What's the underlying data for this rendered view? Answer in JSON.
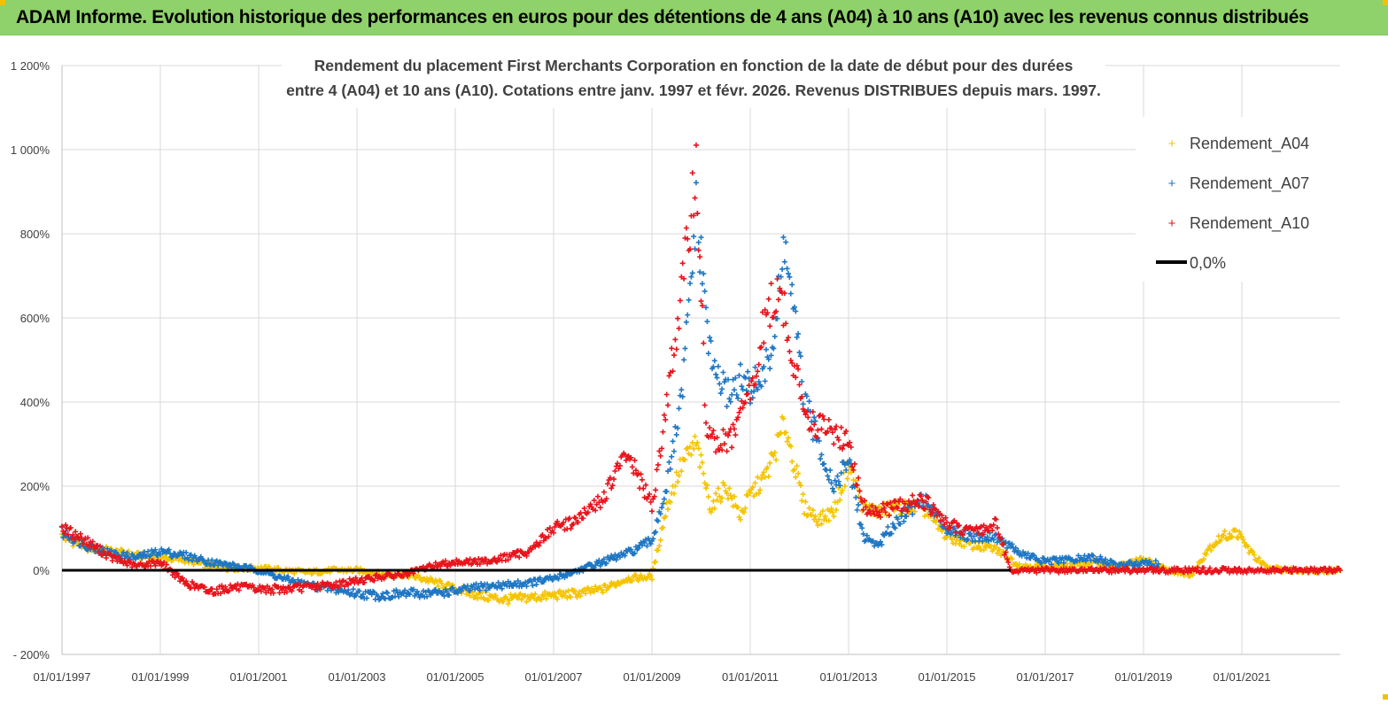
{
  "banner": {
    "title": "ADAM Informe. Evolution historique des performances en euros pour des détentions de 4 ans (A04) à 10 ans (A10) avec les revenus connus distribués"
  },
  "colors": {
    "banner": "#8fd16a",
    "a04": "#f5c400",
    "a07": "#1f77c4",
    "a10": "#e8141c",
    "zero": "#000000",
    "grid": "#d9d9d9"
  },
  "chart_data": {
    "type": "scatter",
    "title_line1": "Rendement du placement First Merchants Corporation en fonction de la date de début pour des durées",
    "title_line2": "entre 4 (A04) et 10 ans (A10).  Cotations entre janv. 1997 et févr. 2026. Revenus DISTRIBUES depuis mars. 1997.",
    "xlabel": "",
    "ylabel": "",
    "x_range": [
      1997.0,
      2023.0
    ],
    "ylim": [
      -200,
      1200
    ],
    "y_ticks": [
      -200,
      0,
      200,
      400,
      600,
      800,
      1000,
      1200
    ],
    "y_tick_labels": [
      "- 200%",
      "0%",
      "200%",
      "400%",
      "600%",
      "800%",
      "1 000%",
      "1 200%"
    ],
    "x_ticks": [
      1997,
      1999,
      2001,
      2003,
      2005,
      2007,
      2009,
      2011,
      2013,
      2015,
      2017,
      2019,
      2021
    ],
    "x_tick_labels": [
      "01/01/1997",
      "01/01/1999",
      "01/01/2001",
      "01/01/2003",
      "01/01/2005",
      "01/01/2007",
      "01/01/2009",
      "01/01/2011",
      "01/01/2013",
      "01/01/2015",
      "01/01/2017",
      "01/01/2019",
      "01/01/2021"
    ],
    "legend_position": "top-right",
    "series": [
      {
        "name": "Rendement_A04",
        "color_key": "a04",
        "x": [
          1997.0,
          1997.5,
          1998.0,
          1998.5,
          1999.0,
          1999.5,
          2000.0,
          2000.5,
          2001.0,
          2001.5,
          2002.0,
          2002.5,
          2003.0,
          2003.5,
          2004.0,
          2004.5,
          2005.0,
          2005.5,
          2006.0,
          2006.5,
          2007.0,
          2007.5,
          2008.0,
          2008.5,
          2009.0,
          2009.3,
          2009.6,
          2009.9,
          2010.2,
          2010.5,
          2010.8,
          2011.0,
          2011.3,
          2011.5,
          2011.7,
          2011.9,
          2012.1,
          2012.4,
          2012.7,
          2013.0,
          2013.3,
          2013.6,
          2014.0,
          2014.5,
          2015.0,
          2015.5,
          2016.0,
          2016.5,
          2017.0,
          2017.5,
          2018.0,
          2018.5,
          2019.0,
          2019.5,
          2020.0,
          2020.3,
          2020.6,
          2020.9,
          2021.2,
          2021.5,
          2022.0,
          2022.5,
          2023.0
        ],
        "values": [
          80,
          55,
          45,
          35,
          30,
          25,
          10,
          5,
          5,
          0,
          -5,
          0,
          0,
          -10,
          -10,
          -25,
          -45,
          -60,
          -70,
          -65,
          -60,
          -55,
          -45,
          -20,
          -15,
          150,
          250,
          300,
          150,
          200,
          130,
          180,
          220,
          280,
          350,
          250,
          150,
          120,
          140,
          250,
          150,
          140,
          150,
          150,
          80,
          60,
          50,
          10,
          10,
          10,
          20,
          10,
          25,
          0,
          -10,
          50,
          80,
          90,
          40,
          5,
          0,
          0,
          0
        ]
      },
      {
        "name": "Rendement_A07",
        "color_key": "a07",
        "x": [
          1997.0,
          1997.5,
          1998.0,
          1998.5,
          1999.0,
          1999.5,
          2000.0,
          2000.5,
          2001.0,
          2001.5,
          2002.0,
          2002.5,
          2003.0,
          2003.5,
          2004.0,
          2004.5,
          2005.0,
          2005.5,
          2006.0,
          2006.5,
          2007.0,
          2007.5,
          2008.0,
          2008.5,
          2009.0,
          2009.3,
          2009.6,
          2009.9,
          2010.2,
          2010.5,
          2010.8,
          2011.0,
          2011.3,
          2011.5,
          2011.7,
          2011.9,
          2012.1,
          2012.4,
          2012.7,
          2013.0,
          2013.3,
          2013.6,
          2014.0,
          2014.5,
          2015.0,
          2015.5,
          2016.0,
          2016.5,
          2017.0,
          2017.5,
          2018.0,
          2018.5,
          2019.0,
          2019.3
        ],
        "values": [
          90,
          60,
          40,
          30,
          45,
          35,
          20,
          10,
          0,
          -20,
          -35,
          -45,
          -55,
          -60,
          -55,
          -55,
          -50,
          -40,
          -35,
          -30,
          -20,
          0,
          20,
          40,
          70,
          200,
          400,
          850,
          500,
          420,
          450,
          430,
          470,
          560,
          780,
          600,
          400,
          300,
          200,
          260,
          80,
          60,
          120,
          170,
          100,
          80,
          80,
          40,
          20,
          25,
          30,
          10,
          20,
          15
        ]
      },
      {
        "name": "Rendement_A10",
        "color_key": "a10",
        "x": [
          1997.0,
          1997.5,
          1998.0,
          1998.5,
          1999.0,
          1999.5,
          2000.0,
          2000.5,
          2001.0,
          2001.5,
          2002.0,
          2002.5,
          2003.0,
          2003.5,
          2004.0,
          2004.5,
          2005.0,
          2005.5,
          2006.0,
          2006.5,
          2007.0,
          2007.5,
          2008.0,
          2008.5,
          2009.0,
          2009.3,
          2009.6,
          2009.9,
          2010.1,
          2010.3,
          2010.6,
          2010.9,
          2011.1,
          2011.3,
          2011.5,
          2011.7,
          2011.9,
          2012.1,
          2012.4,
          2012.7,
          2013.0,
          2013.3,
          2013.6,
          2014.0,
          2014.5,
          2015.0,
          2015.5,
          2016.0,
          2016.3,
          2017.0,
          2018.0,
          2019.0,
          2020.0,
          2021.0,
          2022.0,
          2023.0
        ],
        "values": [
          100,
          70,
          30,
          10,
          20,
          -30,
          -50,
          -40,
          -45,
          -45,
          -40,
          -35,
          -25,
          -15,
          -10,
          10,
          20,
          20,
          30,
          45,
          100,
          120,
          170,
          280,
          150,
          400,
          650,
          960,
          350,
          300,
          310,
          400,
          450,
          600,
          650,
          620,
          480,
          380,
          340,
          330,
          300,
          150,
          140,
          150,
          170,
          110,
          90,
          110,
          0,
          0,
          0,
          0,
          0,
          0,
          0,
          0
        ]
      }
    ],
    "reference_line": {
      "name": "0,0%",
      "value": 0
    }
  }
}
